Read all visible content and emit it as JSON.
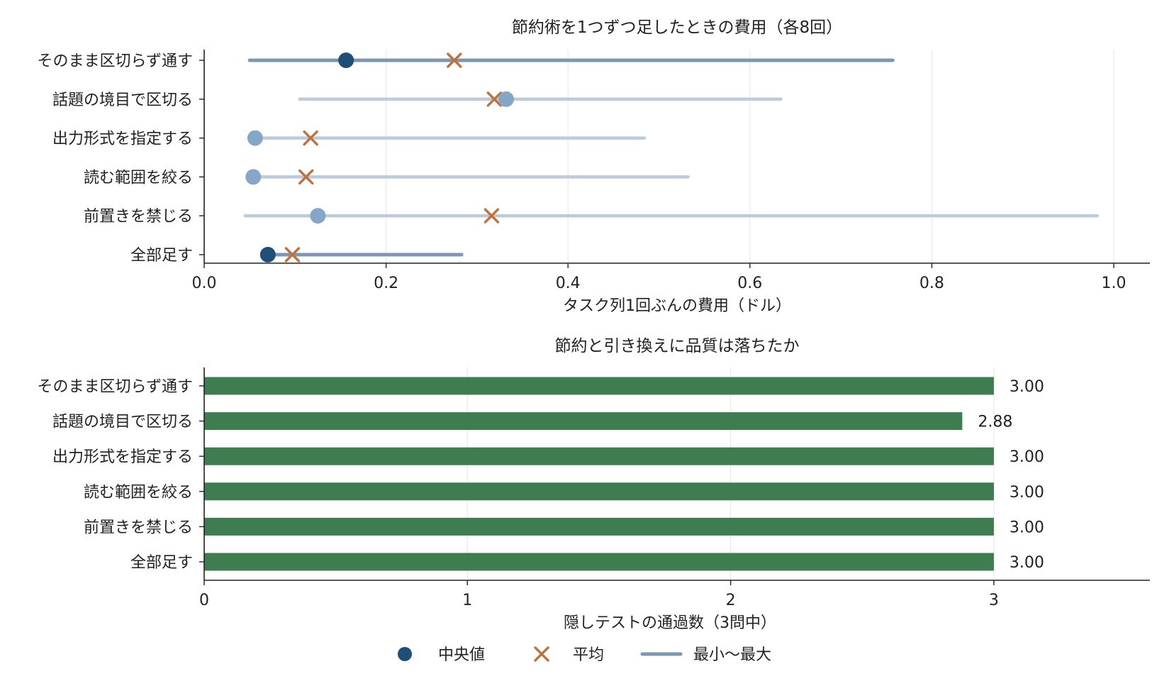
{
  "chart_data": [
    {
      "type": "dot-range",
      "title": "節約術を1つずつ足したときの費用（各8回）",
      "xlabel": "タスク列1回ぶんの費用（ドル）",
      "ylabel": "",
      "xlim": [
        0,
        1.04
      ],
      "xticks": [
        "0.0",
        "0.2",
        "0.4",
        "0.6",
        "0.8",
        "1.0"
      ],
      "grid": "vertical",
      "categories": [
        "そのまま区切らず通す",
        "話題の境目で区切る",
        "出力形式を指定する",
        "読む範囲を絞る",
        "前置きを禁じる",
        "全部足す"
      ],
      "median": [
        0.156,
        0.332,
        0.056,
        0.054,
        0.125,
        0.07
      ],
      "mean": [
        0.275,
        0.319,
        0.117,
        0.112,
        0.316,
        0.097
      ],
      "min": [
        0.05,
        0.105,
        0.055,
        0.054,
        0.045,
        0.07
      ],
      "max": [
        0.757,
        0.634,
        0.484,
        0.532,
        0.982,
        0.283
      ],
      "emphasis": [
        true,
        false,
        false,
        false,
        false,
        true
      ],
      "colors": {
        "median_emphasis": "#1f4e79",
        "median_other": "#86a6c8",
        "range_emphasis": "#7d97b3",
        "range_other": "#bccbdb",
        "mean": "#c0703a"
      }
    },
    {
      "type": "bar",
      "orientation": "horizontal",
      "title": "節約と引き換えに品質は落ちたか",
      "xlabel": "隠しテストの通過数（3問中）",
      "ylabel": "",
      "xlim": [
        0,
        3.6
      ],
      "xticks": [
        "0",
        "1",
        "2",
        "3"
      ],
      "grid": "vertical",
      "categories": [
        "そのまま区切らず通す",
        "話題の境目で区切る",
        "出力形式を指定する",
        "読む範囲を絞る",
        "前置きを禁じる",
        "全部足す"
      ],
      "values": [
        3.0,
        2.88,
        3.0,
        3.0,
        3.0,
        3.0
      ],
      "value_labels": [
        "3.00",
        "2.88",
        "3.00",
        "3.00",
        "3.00",
        "3.00"
      ],
      "colors": {
        "bar": "#3e7d50",
        "label": "#3e7d50"
      }
    }
  ],
  "legend": {
    "placement": "bottom-center",
    "items": [
      {
        "label": "中央値",
        "marker": "dot",
        "color": "#1f4e79"
      },
      {
        "label": "平均",
        "marker": "cross",
        "color": "#c0703a"
      },
      {
        "label": "最小〜最大",
        "marker": "line",
        "color": "#7d97b3"
      }
    ]
  }
}
